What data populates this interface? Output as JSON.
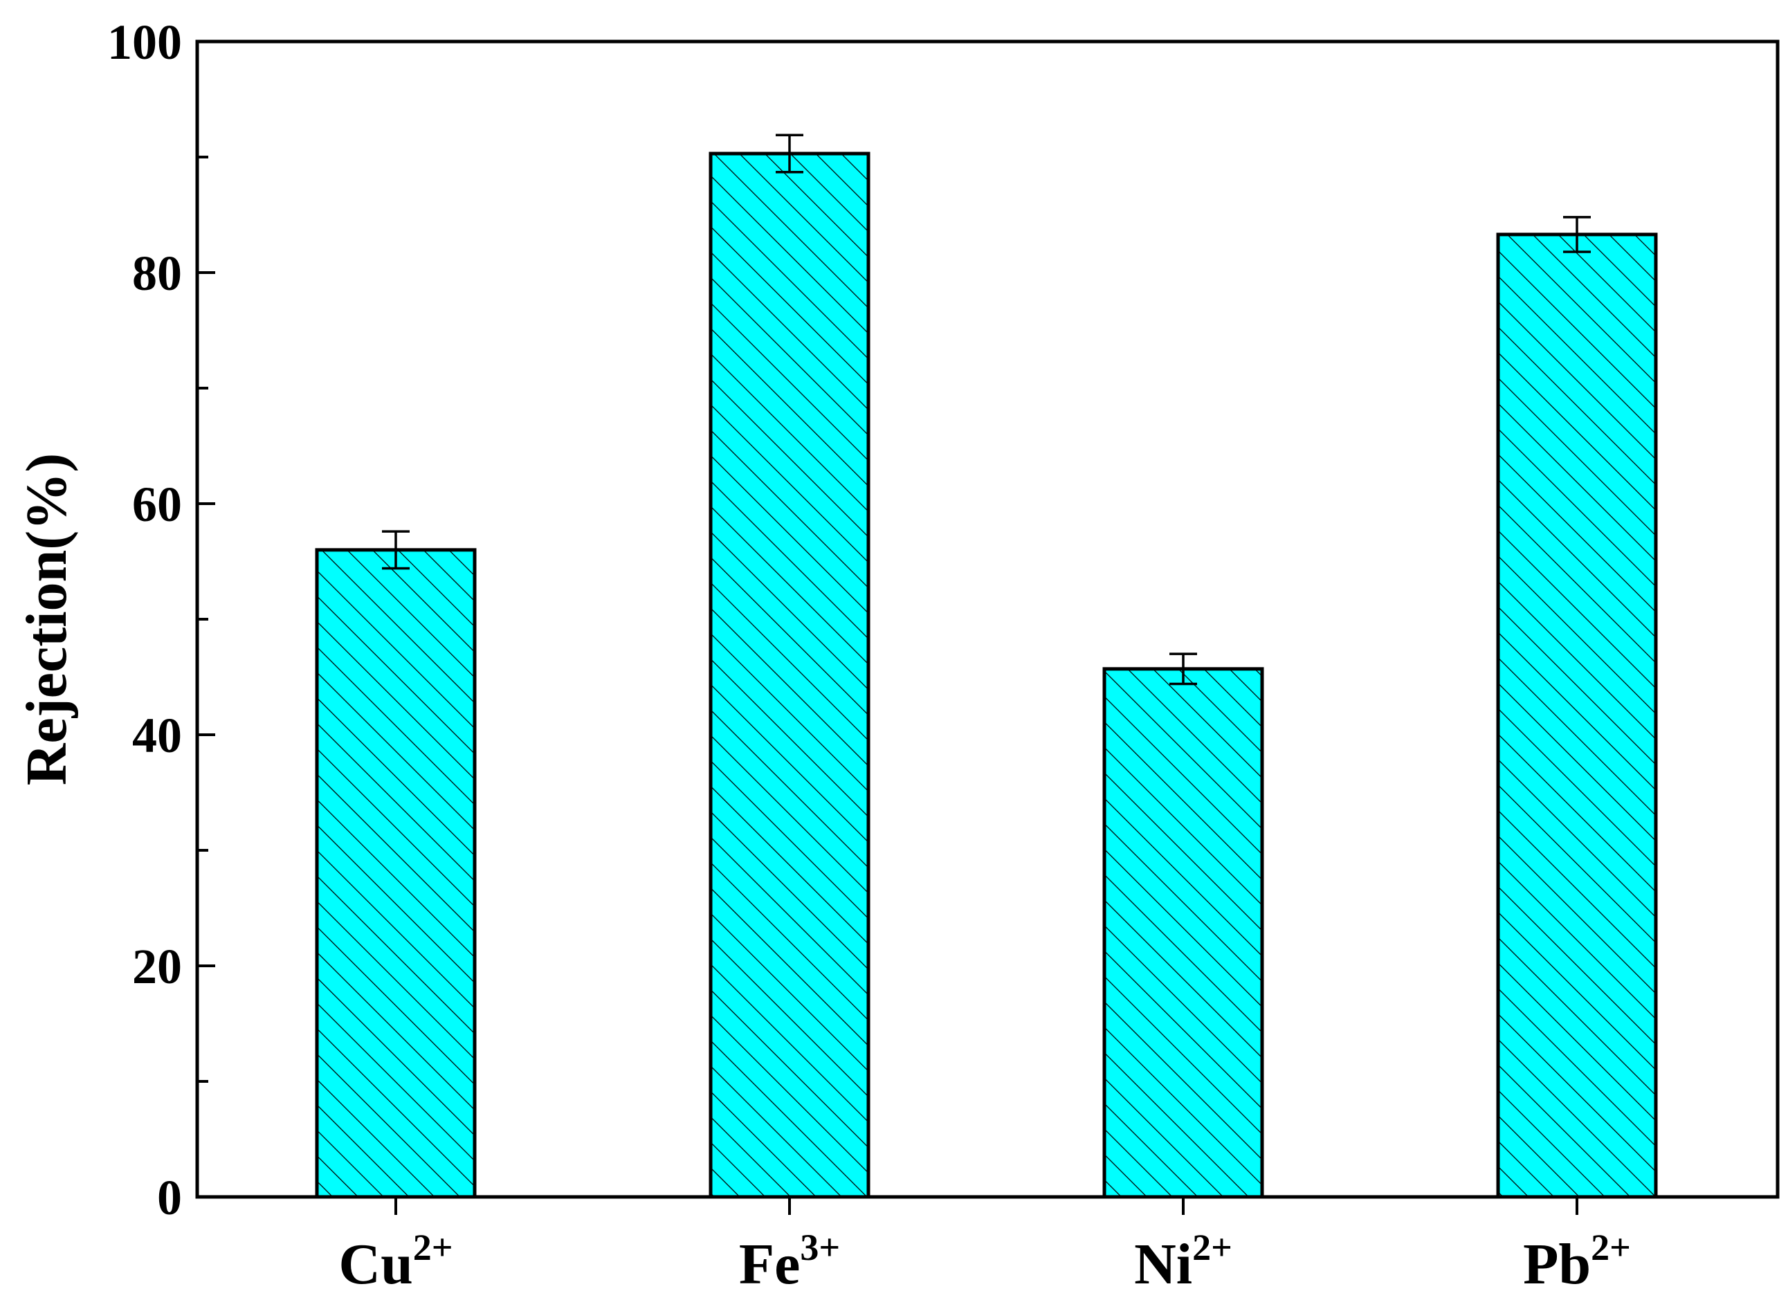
{
  "chart_data": {
    "type": "bar",
    "title": "",
    "xlabel": "",
    "ylabel": "Rejection(%)",
    "ylim": [
      0,
      100
    ],
    "yticks": [
      0,
      20,
      40,
      60,
      80,
      100
    ],
    "yticks_minor_step": 10,
    "grid": false,
    "categories": [
      {
        "base": "Cu",
        "sup": "2+"
      },
      {
        "base": "Fe",
        "sup": "3+"
      },
      {
        "base": "Ni",
        "sup": "2+"
      },
      {
        "base": "Pb",
        "sup": "2+"
      }
    ],
    "values": [
      56.0,
      90.3,
      45.7,
      83.3
    ],
    "errors": [
      1.6,
      1.6,
      1.3,
      1.5
    ],
    "colors": {
      "bar_fill": "#00FFFF",
      "bar_stroke": "#000000",
      "hatch": "#000000"
    },
    "hatch": "diagonal"
  }
}
